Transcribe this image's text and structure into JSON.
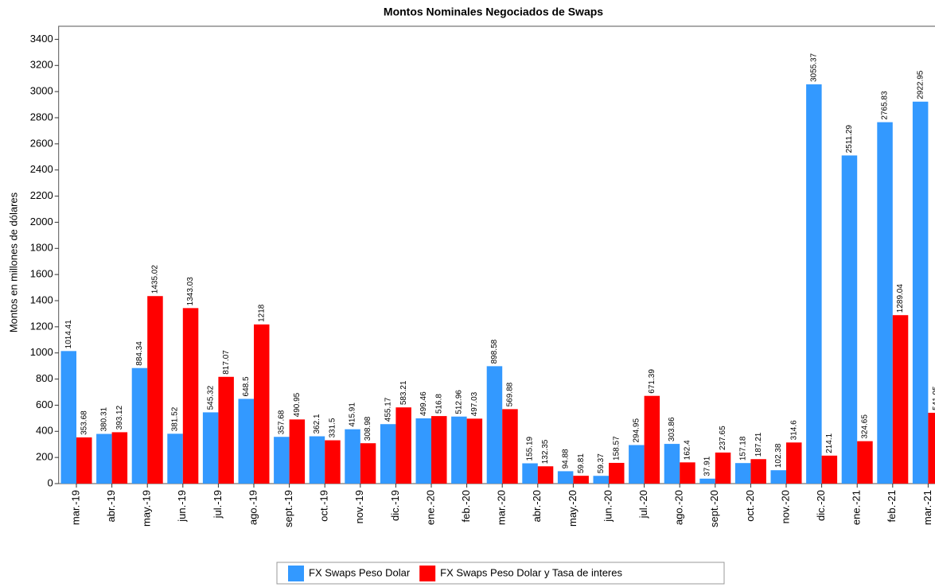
{
  "chart_data": {
    "type": "bar",
    "title": "Montos Nominales Negociados de Swaps",
    "y_label": "Montos en millones de dólares",
    "categories": [
      "mar.-19",
      "abr.-19",
      "may.-19",
      "jun.-19",
      "jul.-19",
      "ago.-19",
      "sept.-19",
      "oct.-19",
      "nov.-19",
      "dic.-19",
      "ene.-20",
      "feb.-20",
      "mar.-20",
      "abr.-20",
      "may.-20",
      "jun.-20",
      "jul.-20",
      "ago.-20",
      "sept.-20",
      "oct.-20",
      "nov.-20",
      "dic.-20",
      "ene.-21",
      "feb.-21",
      "mar.-21"
    ],
    "series": [
      {
        "name": "FX Swaps Peso Dolar",
        "color": "#3399ff",
        "values": [
          1014.41,
          380.31,
          884.34,
          381.52,
          545.32,
          648.5,
          357.68,
          362.1,
          415.91,
          455.17,
          499.46,
          512.96,
          898.58,
          155.19,
          94.88,
          59.37,
          294.95,
          303.86,
          37.91,
          157.18,
          102.38,
          3055.37,
          2511.29,
          2765.83,
          2922.95
        ]
      },
      {
        "name": "FX Swaps Peso Dolar y Tasa de interes",
        "color": "#ff0000",
        "values": [
          353.68,
          393.12,
          1435.02,
          1343.03,
          817.07,
          1218,
          490.95,
          331.5,
          308.98,
          583.21,
          516.8,
          497.03,
          569.88,
          132.35,
          59.81,
          158.57,
          671.39,
          162.4,
          237.65,
          187.21,
          314.6,
          214.1,
          324.65,
          1289.04,
          541.95
        ]
      }
    ],
    "ylim": [
      0,
      3500
    ],
    "yticks": [
      0,
      200,
      400,
      600,
      800,
      1000,
      1200,
      1400,
      1600,
      1800,
      2000,
      2200,
      2400,
      2600,
      2800,
      3000,
      3200,
      3400
    ],
    "legend": "bottom"
  }
}
